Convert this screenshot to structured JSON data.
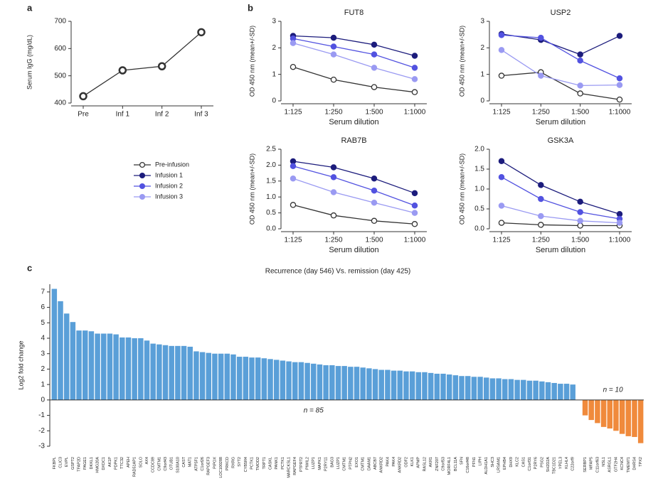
{
  "chart_data": [
    {
      "type": "line",
      "panel": "a",
      "ylabel": "Serum IgG (mg/dL)",
      "categories": [
        "Pre",
        "Inf 1",
        "Inf 2",
        "Inf 3"
      ],
      "values": [
        425,
        520,
        535,
        660
      ],
      "color": "#333333",
      "ylim": [
        400,
        700
      ],
      "yticks": [
        400,
        500,
        600,
        700
      ]
    },
    {
      "type": "line",
      "panel": "b",
      "title": "FUT8",
      "ylabel": "OD 450 nm (mean+/-SD)",
      "xlabel": "Serum dilution",
      "categories": [
        "1:125",
        "1:250",
        "1:500",
        "1:1000"
      ],
      "ylim": [
        0,
        3
      ],
      "yticks": [
        0,
        1,
        2,
        3
      ],
      "legend": [
        {
          "name": "Pre-infusion",
          "color": "#333333",
          "open": true
        },
        {
          "name": "Infusion 1",
          "color": "#1c1c7c"
        },
        {
          "name": "Infusion 2",
          "color": "#5252e0"
        },
        {
          "name": "Infusion 3",
          "color": "#9a9af2"
        }
      ],
      "series": [
        {
          "values": [
            1.28,
            0.8,
            0.52,
            0.33
          ]
        },
        {
          "values": [
            2.45,
            2.38,
            2.12,
            1.7
          ]
        },
        {
          "values": [
            2.35,
            2.05,
            1.75,
            1.25
          ]
        },
        {
          "values": [
            2.18,
            1.75,
            1.25,
            0.82
          ]
        }
      ]
    },
    {
      "type": "line",
      "title": "USP2",
      "ylabel": "OD 450 nm (mean+/-SD)",
      "xlabel": "Serum dilution",
      "categories": [
        "1:125",
        "1:250",
        "1:500",
        "1:1000"
      ],
      "ylim": [
        0,
        3
      ],
      "yticks": [
        0,
        1,
        2,
        3
      ],
      "series": [
        {
          "values": [
            0.95,
            1.08,
            0.28,
            0.05
          ]
        },
        {
          "values": [
            2.52,
            2.3,
            1.75,
            2.45
          ]
        },
        {
          "values": [
            2.48,
            2.38,
            1.52,
            0.85
          ]
        },
        {
          "values": [
            1.92,
            0.95,
            0.58,
            0.6
          ]
        }
      ]
    },
    {
      "type": "line",
      "title": "RAB7B",
      "ylabel": "OD 450 nm (mean+/-SD)",
      "xlabel": "Serum dilution",
      "categories": [
        "1:125",
        "1:250",
        "1:500",
        "1:1000"
      ],
      "ylim": [
        0,
        2.5
      ],
      "yticks": [
        {
          "value": 0,
          "label": "0.0"
        },
        0.5,
        {
          "value": 1,
          "label": "1.0"
        },
        1.5,
        {
          "value": 2,
          "label": "2.0"
        },
        2.5
      ],
      "series": [
        {
          "values": [
            0.75,
            0.42,
            0.25,
            0.15
          ]
        },
        {
          "values": [
            2.12,
            1.93,
            1.58,
            1.12
          ]
        },
        {
          "values": [
            1.97,
            1.62,
            1.2,
            0.73
          ]
        },
        {
          "values": [
            1.58,
            1.15,
            0.82,
            0.5
          ]
        }
      ]
    },
    {
      "type": "line",
      "title": "GSK3A",
      "ylabel": "OD 450 nm (mean+/-SD)",
      "xlabel": "Serum dilution",
      "categories": [
        "1:125",
        "1:250",
        "1:500",
        "1:1000"
      ],
      "ylim": [
        0,
        2
      ],
      "yticks": [
        {
          "value": 0,
          "label": "0.0"
        },
        0.5,
        {
          "value": 1,
          "label": "1.0"
        },
        1.5,
        {
          "value": 2,
          "label": "2.0"
        }
      ],
      "series": [
        {
          "values": [
            0.15,
            0.1,
            0.08,
            0.08
          ]
        },
        {
          "values": [
            1.7,
            1.1,
            0.68,
            0.37
          ]
        },
        {
          "values": [
            1.3,
            0.75,
            0.42,
            0.25
          ]
        },
        {
          "values": [
            0.58,
            0.32,
            0.2,
            0.15
          ]
        }
      ]
    },
    {
      "type": "bar",
      "panel": "c",
      "title": "Recurrence (day 546) Vs. remission (day 425)",
      "ylabel": "Log2 fold change",
      "ylim": [
        -3,
        7.5
      ],
      "yticks": [
        -3,
        -2,
        -1,
        0,
        1,
        2,
        3,
        4,
        5,
        6,
        7
      ],
      "groups": [
        {
          "color": "#5a9fd8",
          "annotation": "n = 85",
          "categories": [
            "FKBPL",
            "CLIC3",
            "EVPL",
            "GSPT2",
            "TFAP2D",
            "PAGE1",
            "DKKL1",
            "HMG20A",
            "DXDC1",
            "AK1P",
            "PDPK1",
            "TTC32",
            "APEH",
            "RAD51AP1",
            "SOLO",
            "AX4",
            "CCDC89",
            "CMTM1",
            "C9orf43",
            "OTUB1",
            "S100A10",
            "CAST",
            "MAT1",
            "ATP5F1",
            "C1orf26",
            "RAPGEF3",
            "PIPOX",
            "LOC100288",
            "PRKCD",
            "RXRG",
            "SYT2",
            "CYB5R4",
            "PCTK1",
            "TMOD2",
            "TRPT1",
            "CASKL",
            "PANK1",
            "PCTK1",
            "MARCKSL1",
            "RAPGEF4",
            "PTPRT2",
            "PIWIL2",
            "LUZP1",
            "MAPK1",
            "P2RY11",
            "BAG3",
            "LUZP1",
            "CMTM1",
            "PTPN2",
            "EXO1",
            "CMTM1",
            "DAAM1",
            "ABCB7",
            "ANKRD2",
            "PAK4",
            "PAK4",
            "ANKRD2",
            "ODF2",
            "KLK1",
            "APMP",
            "RASL12",
            "AKR1",
            "ZNF207",
            "C9orf53",
            "MORF4L1",
            "BCL11A",
            "SFN",
            "C16orf48",
            "PFN1",
            "LIPH",
            "ALDH1A1",
            "SHC3",
            "LRSAM1",
            "EPHB4",
            "DHX9",
            "KLC2",
            "CAS1",
            "C1orf31",
            "P2RY6",
            "PSG2",
            "SH2D2A",
            "TBC1D21",
            "YPEL3",
            "KLHL4",
            "C22orf9"
          ],
          "values": [
            7.2,
            6.4,
            5.6,
            5.05,
            4.5,
            4.5,
            4.45,
            4.3,
            4.3,
            4.3,
            4.25,
            4.05,
            4.05,
            4.0,
            4.0,
            3.85,
            3.65,
            3.6,
            3.55,
            3.5,
            3.5,
            3.5,
            3.45,
            3.15,
            3.1,
            3.05,
            3.0,
            3.0,
            3.0,
            2.95,
            2.8,
            2.8,
            2.75,
            2.75,
            2.7,
            2.65,
            2.6,
            2.55,
            2.5,
            2.45,
            2.45,
            2.4,
            2.35,
            2.3,
            2.25,
            2.25,
            2.2,
            2.2,
            2.15,
            2.15,
            2.1,
            2.05,
            2.0,
            1.95,
            1.95,
            1.9,
            1.9,
            1.85,
            1.85,
            1.8,
            1.8,
            1.75,
            1.7,
            1.7,
            1.65,
            1.6,
            1.55,
            1.55,
            1.5,
            1.5,
            1.45,
            1.4,
            1.4,
            1.35,
            1.35,
            1.3,
            1.3,
            1.25,
            1.25,
            1.2,
            1.15,
            1.1,
            1.05,
            1.05,
            1.0
          ]
        },
        {
          "color": "#f08a3c",
          "annotation": "n = 10",
          "categories": [
            "SERBP1",
            "MFAP5",
            "C11orf63",
            "NSL1",
            "ASRGL1",
            "GTF2H4",
            "KCNC4",
            "TMEM71",
            "DHRS4",
            "TPX2"
          ],
          "values": [
            -1.0,
            -1.3,
            -1.5,
            -1.75,
            -1.85,
            -2.0,
            -2.2,
            -2.35,
            -2.4,
            -2.8
          ]
        }
      ]
    }
  ]
}
